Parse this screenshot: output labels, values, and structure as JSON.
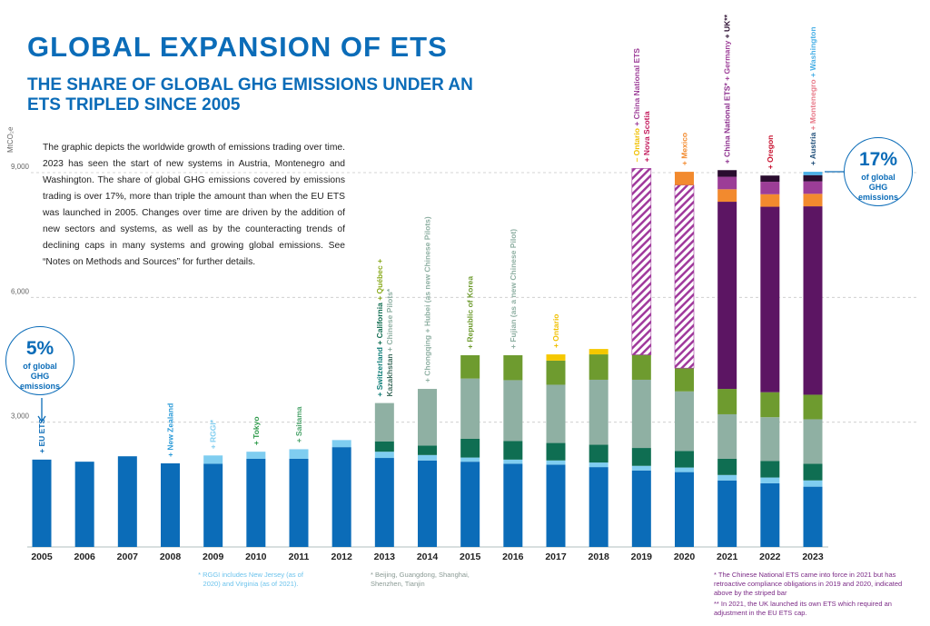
{
  "title": "GLOBAL EXPANSION OF ETS",
  "subtitle": "THE SHARE OF GLOBAL GHG EMISSIONS UNDER AN ETS TRIPLED SINCE 2005",
  "description": "The graphic depicts the worldwide growth of emissions trading over time. 2023 has seen the start of new systems in Austria, Montenegro and Washington. The share of global GHG emissions covered by emissions trading is over 17%, more than triple the amount than when the EU ETS was launched in 2005. Changes over time are driven by the addition of new sectors and systems, as well as by the counteracting trends of declining caps in many systems and growing global emissions. See “Notes on Methods and Sources” for further details.",
  "callouts": [
    {
      "value": "5%",
      "label": "of global GHG emissions"
    },
    {
      "value": "17%",
      "label": "of global GHG emissions"
    }
  ],
  "notes": [
    {
      "text": "* RGGI includes New Jersey (as of 2020) and Virginia (as of 2021).",
      "color": "#6cc3ec"
    },
    {
      "text": "* Beijing, Guangdong, Shanghai, Shenzhen, Tianjin",
      "color": "#8a9a94"
    },
    {
      "text": "* The Chinese National ETS came into force in 2021 but has retroactive compliance obligations in 2019 and 2020, indicated above by the striped bar",
      "color": "#7b2a86"
    },
    {
      "text": "** In 2021, the UK launched its own ETS which required an adjustment in the EU ETS cap.",
      "color": "#7b2a86"
    }
  ],
  "chart_data": {
    "type": "stacked_bar",
    "y_label": "MtCO₂e",
    "categories": [
      "2005",
      "2006",
      "2007",
      "2008",
      "2009",
      "2010",
      "2011",
      "2012",
      "2013",
      "2014",
      "2015",
      "2016",
      "2017",
      "2018",
      "2019",
      "2020",
      "2021",
      "2022",
      "2023"
    ],
    "ylim": [
      0,
      9000
    ],
    "yticks": [
      {
        "value": 3000,
        "label": "3,000"
      },
      {
        "value": 6000,
        "label": "6,000"
      },
      {
        "value": 9000,
        "label": "9,000"
      }
    ],
    "grid": true,
    "series": [
      {
        "color": "#0b6cb8",
        "values": [
          2100,
          2050,
          2180,
          2010,
          2000,
          2120,
          2120,
          2400,
          2140,
          2080,
          2050,
          2000,
          1980,
          1920,
          1840,
          1800,
          1600,
          1530,
          1450
        ]
      },
      {
        "color": "#7fcdf0",
        "values": [
          null,
          null,
          null,
          null,
          200,
          170,
          230,
          170,
          150,
          130,
          100,
          100,
          100,
          110,
          110,
          110,
          130,
          140,
          150
        ]
      },
      {
        "color": "#0f6e52",
        "values": [
          null,
          null,
          null,
          null,
          null,
          null,
          null,
          null,
          250,
          230,
          450,
          450,
          420,
          430,
          430,
          400,
          390,
          400,
          400
        ]
      },
      {
        "color": "#8fb0a3",
        "values": [
          null,
          null,
          null,
          null,
          null,
          null,
          null,
          null,
          920,
          1360,
          1450,
          1460,
          1400,
          1560,
          1640,
          1430,
          1070,
          1050,
          1070
        ]
      },
      {
        "color": "#6e9b2f",
        "values": [
          null,
          null,
          null,
          null,
          null,
          null,
          null,
          null,
          null,
          null,
          560,
          600,
          580,
          610,
          600,
          560,
          610,
          600,
          590
        ]
      },
      {
        "color": "#f5c800",
        "values": [
          null,
          null,
          null,
          null,
          null,
          null,
          null,
          null,
          null,
          null,
          null,
          null,
          150,
          130,
          null,
          null,
          null,
          null,
          null
        ]
      },
      {
        "color": "#a0399c",
        "hatch": true,
        "values": [
          null,
          null,
          null,
          null,
          null,
          null,
          null,
          null,
          null,
          null,
          null,
          null,
          null,
          null,
          4480,
          4400,
          null,
          null,
          null
        ]
      },
      {
        "color": "#5c1563",
        "values": [
          null,
          null,
          null,
          null,
          null,
          null,
          null,
          null,
          null,
          null,
          null,
          null,
          null,
          null,
          null,
          null,
          4500,
          4460,
          4530
        ]
      },
      {
        "color": "#f28a2e",
        "values": [
          null,
          null,
          null,
          null,
          null,
          null,
          null,
          null,
          null,
          null,
          null,
          null,
          null,
          null,
          null,
          320,
          300,
          300,
          300
        ]
      },
      {
        "color": "#9c3d97",
        "values": [
          null,
          null,
          null,
          null,
          null,
          null,
          null,
          null,
          null,
          null,
          null,
          null,
          null,
          null,
          null,
          null,
          300,
          300,
          300
        ]
      },
      {
        "color": "#2a0c2f",
        "values": [
          null,
          null,
          null,
          null,
          null,
          null,
          null,
          null,
          null,
          null,
          null,
          null,
          null,
          null,
          null,
          null,
          160,
          150,
          150
        ]
      },
      {
        "color": "#4ab0e6",
        "values": [
          null,
          null,
          null,
          null,
          null,
          null,
          null,
          null,
          null,
          null,
          null,
          null,
          null,
          null,
          null,
          null,
          null,
          null,
          80
        ]
      }
    ],
    "annotations": [
      {
        "category": "2005",
        "lines": [
          [
            {
              "text": "+ EU ETS",
              "color": "#0b6cb8"
            }
          ]
        ]
      },
      {
        "category": "2008",
        "lines": [
          [
            {
              "text": "+ New Zealand",
              "color": "#2a9ad8"
            }
          ]
        ]
      },
      {
        "category": "2009",
        "lines": [
          [
            {
              "text": "+ RGGI*",
              "color": "#7fcdf0"
            }
          ]
        ]
      },
      {
        "category": "2010",
        "lines": [
          [
            {
              "text": "+ Tokyo",
              "color": "#2e9a4a"
            }
          ]
        ]
      },
      {
        "category": "2011",
        "lines": [
          [
            {
              "text": "+ Saitama",
              "color": "#4aa36a"
            }
          ]
        ]
      },
      {
        "category": "2013",
        "lines": [
          [
            {
              "text": "+ Switzerland",
              "color": "#0f7e78"
            },
            {
              "text": " + California",
              "color": "#0e6b4f"
            },
            {
              "text": " + Québec +",
              "color": "#8aaa1e"
            }
          ],
          [
            {
              "text": "Kazakhstan",
              "color": "#3f6d5f"
            },
            {
              "text": " + Chinese Pilots*",
              "color": "#8fb0a3"
            }
          ]
        ]
      },
      {
        "category": "2014",
        "lines": [
          [
            {
              "text": "+ Chongqing + Hubei (as new Chinese Pilots)",
              "color": "#8fb0a3"
            }
          ]
        ]
      },
      {
        "category": "2015",
        "lines": [
          [
            {
              "text": "+ Republic of Korea",
              "color": "#6e9b2f"
            }
          ]
        ]
      },
      {
        "category": "2016",
        "lines": [
          [
            {
              "text": "+ Fujian (as a new Chinese Pilot)",
              "color": "#8fb0a3"
            }
          ]
        ]
      },
      {
        "category": "2017",
        "lines": [
          [
            {
              "text": "+ Ontario",
              "color": "#f0c000"
            }
          ]
        ]
      },
      {
        "category": "2019",
        "lines": [
          [
            {
              "text": "– Ontario",
              "color": "#f0c000"
            },
            {
              "text": " + China National ETS",
              "color": "#9c3d97"
            }
          ],
          [
            {
              "text": "+ Nova Scotia",
              "color": "#c2185b"
            }
          ]
        ]
      },
      {
        "category": "2020",
        "lines": [
          [
            {
              "text": "+ Mexico",
              "color": "#f28a2e"
            }
          ]
        ]
      },
      {
        "category": "2021",
        "lines": [
          [
            {
              "text": "+ China National ETS*",
              "color": "#8b2d8c"
            },
            {
              "text": " + Germany",
              "color": "#9c3d97"
            },
            {
              "text": " + UK**",
              "color": "#2a0c2f"
            }
          ]
        ]
      },
      {
        "category": "2022",
        "lines": [
          [
            {
              "text": "+ Oregon",
              "color": "#c8102e"
            }
          ]
        ]
      },
      {
        "category": "2023",
        "lines": [
          [
            {
              "text": "+ Austria",
              "color": "#1f4e79"
            },
            {
              "text": " + Montenegro",
              "color": "#e87b8a"
            },
            {
              "text": " + Washington",
              "color": "#4ab0e6"
            }
          ]
        ]
      }
    ]
  }
}
